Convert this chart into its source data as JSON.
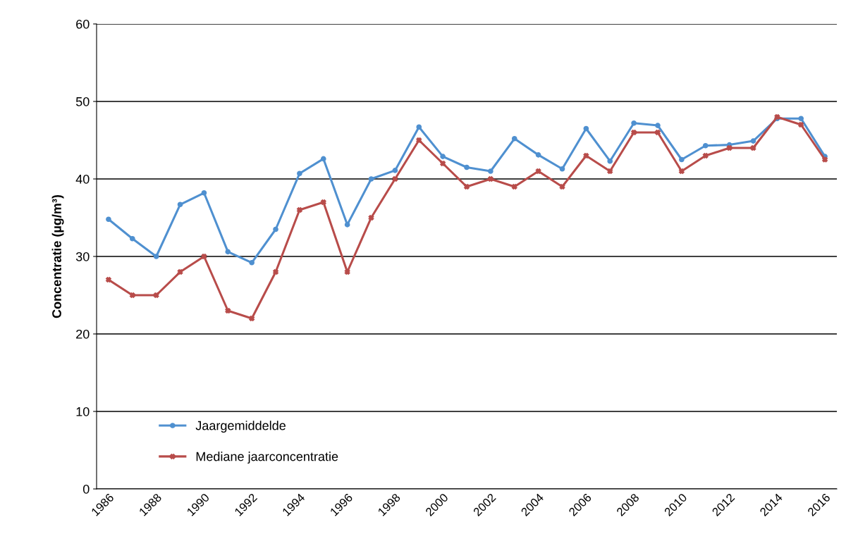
{
  "chart_data": {
    "type": "line",
    "ylabel": "Concentratie (µg/m³)",
    "categories": [
      "1986",
      null,
      "1988",
      null,
      "1990",
      null,
      "1992",
      null,
      "1994",
      null,
      "1996",
      null,
      "1998",
      null,
      "2000",
      null,
      "2002",
      null,
      "2004",
      null,
      "2006",
      null,
      "2008",
      null,
      "2010",
      null,
      "2012",
      null,
      "2014",
      null,
      "2016"
    ],
    "series": [
      {
        "name": "Jaargemiddelde",
        "color": "#4f90d0",
        "marker": "circle",
        "values": [
          34.8,
          32.3,
          30.0,
          36.7,
          38.2,
          30.6,
          29.2,
          33.5,
          40.7,
          42.6,
          34.1,
          40.0,
          41.1,
          46.7,
          42.9,
          41.5,
          41.0,
          45.2,
          43.1,
          41.3,
          46.5,
          42.3,
          47.2,
          46.9,
          42.5,
          44.3,
          44.4,
          44.9,
          47.8,
          47.8,
          42.9
        ]
      },
      {
        "name": "Mediane jaarconcentratie",
        "color": "#b84c4a",
        "marker": "cross",
        "values": [
          27,
          25,
          25,
          28,
          30,
          23,
          22,
          28,
          36,
          37,
          28,
          35,
          40,
          45,
          42,
          39,
          40,
          39,
          41,
          39,
          43,
          41,
          46,
          46,
          41,
          43,
          44,
          44,
          48,
          47,
          42.5
        ]
      }
    ],
    "ylim": [
      0,
      60
    ],
    "yticks": [
      0,
      10,
      20,
      30,
      40,
      50,
      60
    ],
    "grid": "y",
    "legend": "bottom left",
    "line_style": "solid"
  }
}
